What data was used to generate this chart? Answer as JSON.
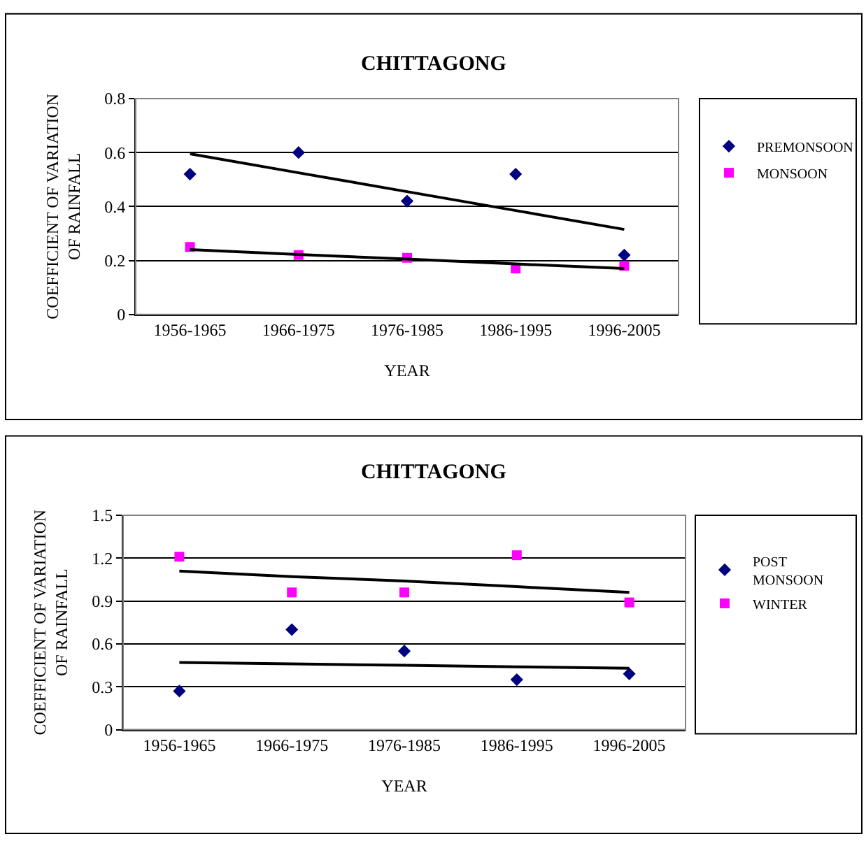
{
  "chart_data": [
    {
      "type": "scatter",
      "title": "CHITTAGONG",
      "xlabel": "YEAR",
      "ylabel": "COEFFICIENT OF VARIATION\nOF RAINFALL",
      "categories": [
        "1956-1965",
        "1966-1975",
        "1976-1985",
        "1986-1995",
        "1996-2005"
      ],
      "ylim": [
        0,
        0.8
      ],
      "yticks": [
        0,
        0.2,
        0.4,
        0.6,
        0.8
      ],
      "grid": "y",
      "legend": "right",
      "series": [
        {
          "name": "PREMONSOON",
          "color": "#000080",
          "marker": "diamond",
          "values": [
            0.52,
            0.6,
            0.42,
            0.52,
            0.22
          ]
        },
        {
          "name": "MONSOON",
          "color": "#ff00ff",
          "marker": "square",
          "values": [
            0.25,
            0.22,
            0.21,
            0.17,
            0.18
          ]
        },
        {
          "type": "line",
          "color": "#000000",
          "marker": "none",
          "values": [
            0.595,
            0.525,
            0.455,
            0.385,
            0.315
          ]
        },
        {
          "type": "line",
          "color": "#000000",
          "marker": "none",
          "values": [
            0.24,
            0.222,
            0.205,
            0.187,
            0.17
          ]
        }
      ]
    },
    {
      "type": "scatter",
      "title": "CHITTAGONG",
      "xlabel": "YEAR",
      "ylabel": "COEFFICIENT OF VARIATION\nOF RAINFALL",
      "categories": [
        "1956-1965",
        "1966-1975",
        "1976-1985",
        "1986-1995",
        "1996-2005"
      ],
      "ylim": [
        0,
        1.5
      ],
      "yticks": [
        0,
        0.3,
        0.6,
        0.9,
        1.2,
        1.5
      ],
      "grid": "y",
      "legend": "right",
      "series": [
        {
          "name": "POST MONSOON",
          "color": "#000080",
          "marker": "diamond",
          "values": [
            0.27,
            0.7,
            0.55,
            0.35,
            0.39
          ]
        },
        {
          "name": "WINTER",
          "color": "#ff00ff",
          "marker": "square",
          "values": [
            1.21,
            0.96,
            0.96,
            1.22,
            0.89
          ]
        },
        {
          "type": "line",
          "color": "#000000",
          "marker": "none",
          "values": [
            1.11,
            1.07,
            1.04,
            1.0,
            0.96
          ]
        },
        {
          "type": "line",
          "color": "#000000",
          "marker": "none",
          "values": [
            0.47,
            0.46,
            0.45,
            0.44,
            0.43
          ]
        }
      ]
    }
  ]
}
